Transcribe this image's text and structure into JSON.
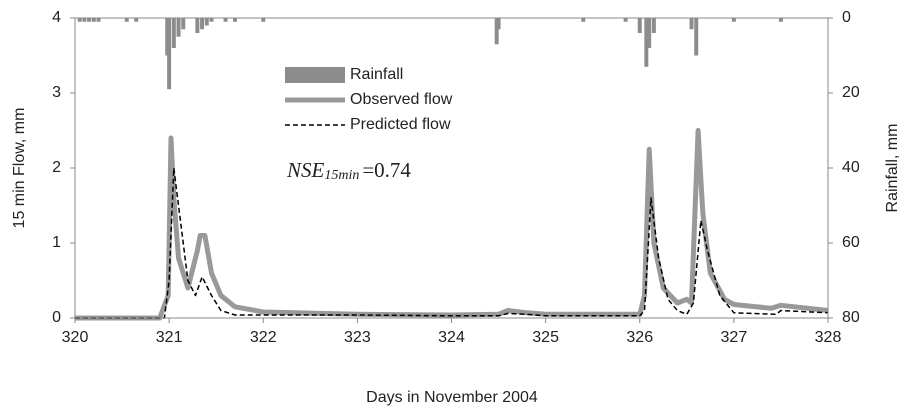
{
  "chart_data": {
    "type": "hydrograph",
    "x_label": "Days in November 2004",
    "y_label": "15 min Flow, mm",
    "y2_label": "Rainfall, mm",
    "xlim": [
      320,
      328
    ],
    "xticks": [
      320,
      321,
      322,
      323,
      324,
      325,
      326,
      327,
      328
    ],
    "ylim": [
      0,
      4
    ],
    "yticks": [
      0,
      1,
      2,
      3,
      4
    ],
    "y2lim": [
      0,
      80
    ],
    "y2ticks": [
      0,
      20,
      40,
      60,
      80
    ],
    "y2_inverted": true,
    "annotation": {
      "symbol": "NSE",
      "subscript": "15min",
      "text": "=0.74"
    },
    "series": [
      {
        "name": "Rainfall",
        "kind": "bar",
        "axis": "y2",
        "color": "#8c8c8c",
        "x": [
          320.05,
          320.1,
          320.15,
          320.2,
          320.25,
          320.55,
          320.65,
          320.98,
          321.0,
          321.05,
          321.1,
          321.15,
          321.3,
          321.35,
          321.4,
          321.45,
          321.6,
          321.7,
          322.0,
          324.48,
          324.5,
          325.4,
          325.85,
          326.0,
          326.07,
          326.1,
          326.15,
          326.55,
          326.6,
          327.0,
          327.5
        ],
        "values": [
          1,
          1,
          1,
          1,
          1,
          1,
          1,
          10,
          19,
          8,
          5,
          3,
          4,
          3,
          2,
          1,
          1,
          1,
          1,
          7,
          3,
          1,
          1,
          4,
          13,
          8,
          4,
          3,
          10,
          1,
          1
        ]
      },
      {
        "name": "Observed flow",
        "kind": "line",
        "color": "#999999",
        "width": 5,
        "dash": "none",
        "x": [
          320,
          320.9,
          320.99,
          321.02,
          321.05,
          321.1,
          321.2,
          321.3,
          321.33,
          321.38,
          321.45,
          321.55,
          321.7,
          322,
          323,
          324,
          324.5,
          324.6,
          324.8,
          325,
          325.5,
          326,
          326.05,
          326.1,
          326.15,
          326.25,
          326.4,
          326.5,
          326.55,
          326.62,
          326.67,
          326.75,
          326.9,
          327,
          327.4,
          327.5,
          328
        ],
        "values": [
          0,
          0,
          0.3,
          2.4,
          1.6,
          0.8,
          0.4,
          0.9,
          1.1,
          1.1,
          0.6,
          0.3,
          0.15,
          0.08,
          0.05,
          0.04,
          0.05,
          0.1,
          0.07,
          0.05,
          0.05,
          0.05,
          0.3,
          2.25,
          1.0,
          0.4,
          0.2,
          0.25,
          0.2,
          2.5,
          1.4,
          0.6,
          0.25,
          0.18,
          0.13,
          0.17,
          0.1
        ]
      },
      {
        "name": "Predicted flow",
        "kind": "line",
        "color": "#000000",
        "width": 1.5,
        "dash": "5,3",
        "x": [
          320,
          320.95,
          321,
          321.05,
          321.12,
          321.2,
          321.28,
          321.35,
          321.45,
          321.55,
          321.7,
          322,
          323,
          324,
          324.5,
          324.6,
          324.8,
          325,
          326,
          326.05,
          326.12,
          326.2,
          326.3,
          326.4,
          326.5,
          326.57,
          326.65,
          326.72,
          326.85,
          327,
          327.45,
          327.5,
          328
        ],
        "values": [
          0,
          0,
          0.5,
          2.0,
          1.3,
          0.5,
          0.3,
          0.55,
          0.3,
          0.1,
          0.04,
          0.04,
          0.04,
          0.03,
          0.03,
          0.06,
          0.05,
          0.03,
          0.03,
          0.1,
          1.6,
          0.8,
          0.25,
          0.1,
          0.05,
          0.2,
          1.3,
          0.9,
          0.3,
          0.07,
          0.05,
          0.1,
          0.07
        ]
      }
    ]
  }
}
